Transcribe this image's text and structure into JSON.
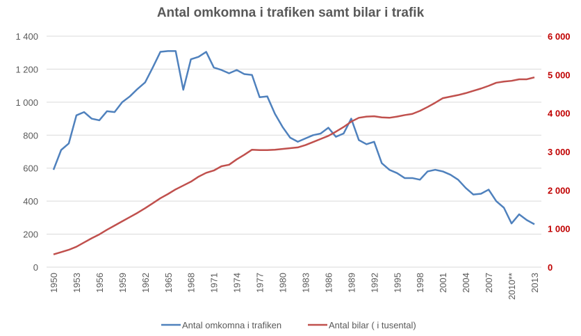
{
  "chart_data": {
    "type": "line",
    "title": "Antal omkomna i trafiken samt bilar i trafik",
    "categories": [
      "1950",
      null,
      null,
      "1953",
      null,
      null,
      "1956",
      null,
      null,
      "1959",
      null,
      null,
      "1962",
      null,
      null,
      "1965",
      null,
      null,
      "1968",
      null,
      null,
      "1971",
      null,
      null,
      "1974",
      null,
      null,
      "1977",
      null,
      null,
      "1980",
      null,
      null,
      "1983",
      null,
      null,
      "1986",
      null,
      null,
      "1989",
      null,
      null,
      "1992",
      null,
      null,
      "1995",
      null,
      null,
      "1998",
      null,
      null,
      "2001",
      null,
      null,
      "2004",
      null,
      null,
      "2007",
      null,
      null,
      "2010**",
      null,
      null,
      "2013"
    ],
    "series": [
      {
        "name": "Antal omkomna i trafiken",
        "color": "#4f81bd",
        "axis": "y",
        "values": [
          590,
          710,
          750,
          920,
          940,
          900,
          890,
          945,
          940,
          1000,
          1035,
          1080,
          1120,
          1210,
          1305,
          1310,
          1310,
          1075,
          1260,
          1275,
          1305,
          1210,
          1195,
          1175,
          1195,
          1170,
          1165,
          1030,
          1035,
          930,
          850,
          785,
          760,
          780,
          800,
          810,
          845,
          790,
          810,
          900,
          770,
          745,
          760,
          630,
          590,
          570,
          540,
          540,
          530,
          580,
          590,
          580,
          560,
          530,
          480,
          440,
          445,
          470,
          400,
          360,
          265,
          320,
          285,
          260
        ]
      },
      {
        "name": "Antal bilar ( i tusental)",
        "color": "#c0504d",
        "axis": "y2",
        "values": [
          330,
          390,
          450,
          530,
          640,
          750,
          850,
          970,
          1080,
          1190,
          1300,
          1410,
          1530,
          1660,
          1790,
          1900,
          2020,
          2120,
          2220,
          2350,
          2450,
          2510,
          2620,
          2660,
          2800,
          2920,
          3050,
          3040,
          3040,
          3050,
          3070,
          3090,
          3110,
          3170,
          3250,
          3330,
          3410,
          3520,
          3640,
          3780,
          3880,
          3910,
          3920,
          3890,
          3880,
          3910,
          3950,
          3980,
          4060,
          4160,
          4270,
          4390,
          4430,
          4470,
          4520,
          4580,
          4640,
          4710,
          4790,
          4820,
          4840,
          4880,
          4880,
          4930
        ]
      }
    ],
    "ylim": [
      0,
      1400
    ],
    "yticks": [
      0,
      200,
      400,
      600,
      800,
      {
        "value": 1000,
        "label": "1 000"
      },
      {
        "value": 1200,
        "label": "1 200"
      },
      {
        "value": 1400,
        "label": "1 400"
      }
    ],
    "y2lim": [
      0,
      6000
    ],
    "y2ticks": [
      0,
      {
        "value": 1000,
        "label": "1 000"
      },
      {
        "value": 2000,
        "label": "2 000"
      },
      {
        "value": 3000,
        "label": "3 000"
      },
      {
        "value": 4000,
        "label": "4 000"
      },
      {
        "value": 5000,
        "label": "5 000"
      },
      {
        "value": 6000,
        "label": "6 000"
      }
    ],
    "y2tick_color": "#c00000",
    "grid": true,
    "legend": "bottom"
  }
}
